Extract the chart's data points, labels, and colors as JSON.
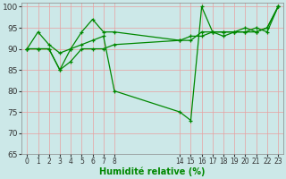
{
  "background_color": "#cce8e8",
  "grid_color": "#e8a0a0",
  "line_color": "#008800",
  "xlabel": "Humidité relative (%)",
  "ylim": [
    65,
    101
  ],
  "yticks": [
    65,
    70,
    75,
    80,
    85,
    90,
    95,
    100
  ],
  "xlim": [
    -0.5,
    23.5
  ],
  "xticks": [
    0,
    1,
    2,
    3,
    4,
    5,
    6,
    7,
    8,
    14,
    15,
    16,
    17,
    18,
    19,
    20,
    21,
    22,
    23
  ],
  "line1_x": [
    0,
    1,
    2,
    3,
    4,
    5,
    6,
    7,
    8,
    14,
    15,
    16,
    17,
    18,
    19,
    20,
    21,
    22,
    23
  ],
  "line1_y": [
    90,
    94,
    91,
    89,
    90,
    94,
    97,
    94,
    94,
    92,
    93,
    93,
    94,
    93,
    94,
    94,
    95,
    94,
    100
  ],
  "line2_x": [
    0,
    1,
    2,
    3,
    4,
    5,
    6,
    7,
    8,
    14,
    15,
    16,
    17,
    18,
    19,
    20,
    21,
    22,
    23
  ],
  "line2_y": [
    90,
    90,
    90,
    85,
    87,
    90,
    90,
    90,
    91,
    92,
    92,
    94,
    94,
    94,
    94,
    94,
    94,
    95,
    100
  ],
  "line3_x": [
    0,
    1,
    2,
    3,
    4,
    5,
    6,
    7,
    8,
    14,
    15,
    16,
    17,
    18,
    19,
    20,
    21,
    22,
    23
  ],
  "line3_y": [
    90,
    90,
    90,
    85,
    90,
    91,
    92,
    93,
    80,
    75,
    73,
    100,
    94,
    94,
    94,
    95,
    94,
    95,
    100
  ]
}
